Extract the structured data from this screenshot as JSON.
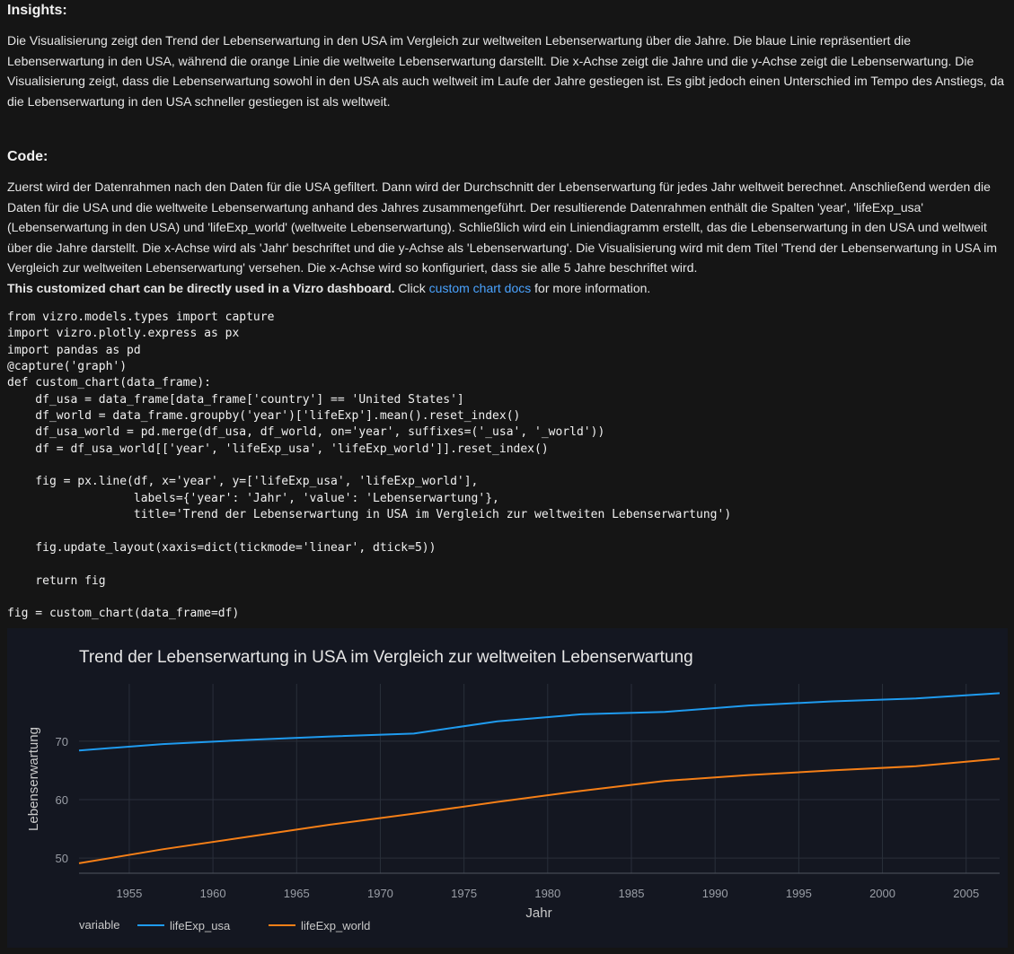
{
  "insights": {
    "heading": "Insights:",
    "text": "Die Visualisierung zeigt den Trend der Lebenserwartung in den USA im Vergleich zur weltweiten Lebenserwartung über die Jahre. Die blaue Linie repräsentiert die Lebenserwartung in den USA, während die orange Linie die weltweite Lebenserwartung darstellt. Die x-Achse zeigt die Jahre und die y-Achse zeigt die Lebenserwartung. Die Visualisierung zeigt, dass die Lebenserwartung sowohl in den USA als auch weltweit im Laufe der Jahre gestiegen ist. Es gibt jedoch einen Unterschied im Tempo des Anstiegs, da die Lebenserwartung in den USA schneller gestiegen ist als weltweit."
  },
  "code_section": {
    "heading": "Code:",
    "description": "Zuerst wird der Datenrahmen nach den Daten für die USA gefiltert. Dann wird der Durchschnitt der Lebenserwartung für jedes Jahr weltweit berechnet. Anschließend werden die Daten für die USA und die weltweite Lebenserwartung anhand des Jahres zusammengeführt. Der resultierende Datenrahmen enthält die Spalten 'year', 'lifeExp_usa' (Lebenserwartung in den USA) und 'lifeExp_world' (weltweite Lebenserwartung). Schließlich wird ein Liniendiagramm erstellt, das die Lebenserwartung in den USA und weltweit über die Jahre darstellt. Die x-Achse wird als 'Jahr' beschriftet und die y-Achse als 'Lebenserwartung'. Die Visualisierung wird mit dem Titel 'Trend der Lebenserwartung in USA im Vergleich zur weltweiten Lebenserwartung' versehen. Die x-Achse wird so konfiguriert, dass sie alle 5 Jahre beschriftet wird.",
    "vizro_bold": "This customized chart can be directly used in a Vizro dashboard.",
    "vizro_click": " Click ",
    "vizro_link": "custom chart docs",
    "vizro_tail": " for more information.",
    "code": "from vizro.models.types import capture\nimport vizro.plotly.express as px\nimport pandas as pd\n@capture('graph')\ndef custom_chart(data_frame):\n    df_usa = data_frame[data_frame['country'] == 'United States']\n    df_world = data_frame.groupby('year')['lifeExp'].mean().reset_index()\n    df_usa_world = pd.merge(df_usa, df_world, on='year', suffixes=('_usa', '_world'))\n    df = df_usa_world[['year', 'lifeExp_usa', 'lifeExp_world']].reset_index()\n\n    fig = px.line(df, x='year', y=['lifeExp_usa', 'lifeExp_world'],\n                  labels={'year': 'Jahr', 'value': 'Lebenserwartung'},\n                  title='Trend der Lebenserwartung in USA im Vergleich zur weltweiten Lebenserwartung')\n\n    fig.update_layout(xaxis=dict(tickmode='linear', dtick=5))\n\n    return fig\n\nfig = custom_chart(data_frame=df)"
  },
  "chart_data": {
    "type": "line",
    "title": "Trend der Lebenserwartung in USA im Vergleich zur weltweiten Lebenserwartung",
    "xlabel": "Jahr",
    "ylabel": "Lebenserwartung",
    "xlim": [
      1952,
      2007
    ],
    "ylim": [
      47.4,
      79.8
    ],
    "x_ticks": [
      1955,
      1960,
      1965,
      1970,
      1975,
      1980,
      1985,
      1990,
      1995,
      2000,
      2005
    ],
    "y_ticks": [
      50,
      60,
      70
    ],
    "grid": true,
    "legend_title": "variable",
    "legend_position": "bottom-left",
    "x": [
      1952,
      1957,
      1962,
      1967,
      1972,
      1977,
      1982,
      1987,
      1992,
      1997,
      2002,
      2007
    ],
    "series": [
      {
        "name": "lifeExp_usa",
        "color": "#1f9bef",
        "values": [
          68.4,
          69.5,
          70.2,
          70.8,
          71.3,
          73.4,
          74.6,
          75.0,
          76.1,
          76.8,
          77.3,
          78.2
        ]
      },
      {
        "name": "lifeExp_world",
        "color": "#f57f17",
        "values": [
          49.1,
          51.5,
          53.6,
          55.7,
          57.6,
          59.6,
          61.5,
          63.2,
          64.2,
          65.0,
          65.7,
          67.0
        ]
      }
    ]
  },
  "colors": {
    "background": "#151515",
    "chart_background": "#141721",
    "link": "#4aa3ff"
  }
}
